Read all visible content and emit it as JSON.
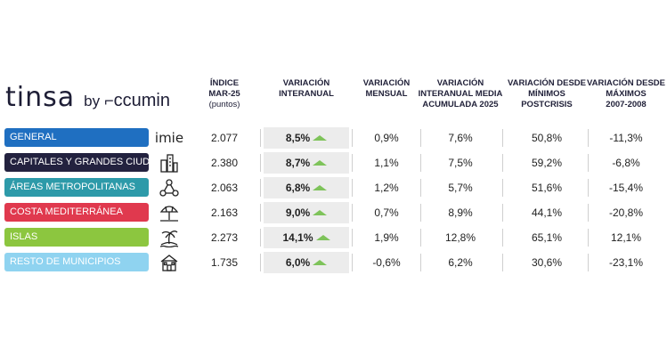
{
  "logo": {
    "brand": "tinsa",
    "by": "by",
    "accumin": "ccumin"
  },
  "headers": {
    "indice": [
      "ÍNDICE",
      "Mar-25"
    ],
    "indice_sub": "(puntos)",
    "var_interanual": [
      "VARIACIÓN",
      "INTERANUAL"
    ],
    "var_mensual": [
      "VARIACIÓN",
      "MENSUAL"
    ],
    "var_acumulada": [
      "VARIACIÓN",
      "INTERANUAL MEDIA",
      "ACUMULADA 2025"
    ],
    "var_minimos": [
      "VARIACIÓN DESDE",
      "MÍNIMOS",
      "POSTCRISIS"
    ],
    "var_maximos": [
      "VARIACIÓN DESDE",
      "MÁXIMOS",
      "2007-2008"
    ]
  },
  "rows": [
    {
      "label": "GENERAL",
      "color": "#1f6fc1",
      "icon": "imie-logo-icon",
      "icon_text": "imie",
      "indice": "2.077",
      "interanual": "8,5%",
      "mensual": "0,9%",
      "acumulada": "7,6%",
      "minimos": "50,8%",
      "maximos": "-11,3%"
    },
    {
      "label": "CAPITALES Y GRANDES CIUDADES",
      "color": "#23223f",
      "icon": "buildings-icon",
      "indice": "2.380",
      "interanual": "8,7%",
      "mensual": "1,1%",
      "acumulada": "7,5%",
      "minimos": "59,2%",
      "maximos": "-6,8%"
    },
    {
      "label": "ÁREAS METROPOLITANAS",
      "color": "#2d9aa9",
      "icon": "network-icon",
      "indice": "2.063",
      "interanual": "6,8%",
      "mensual": "1,2%",
      "acumulada": "5,7%",
      "minimos": "51,6%",
      "maximos": "-15,4%"
    },
    {
      "label": "COSTA MEDITERRÁNEA",
      "color": "#e0394e",
      "icon": "beach-umbrella-icon",
      "indice": "2.163",
      "interanual": "9,0%",
      "mensual": "0,7%",
      "acumulada": "8,9%",
      "minimos": "44,1%",
      "maximos": "-20,8%"
    },
    {
      "label": "ISLAS",
      "color": "#8cc63f",
      "icon": "island-palm-icon",
      "indice": "2.273",
      "interanual": "14,1%",
      "mensual": "1,9%",
      "acumulada": "12,8%",
      "minimos": "65,1%",
      "maximos": "12,1%"
    },
    {
      "label": "RESTO DE MUNICIPIOS",
      "color": "#8fd3f0",
      "icon": "house-icon",
      "indice": "1.735",
      "interanual": "6,0%",
      "mensual": "-0,6%",
      "acumulada": "6,2%",
      "minimos": "30,6%",
      "maximos": "-23,1%"
    }
  ],
  "colors": {
    "trend_up": "#7ec35a",
    "highlight_column": "#ececec"
  }
}
